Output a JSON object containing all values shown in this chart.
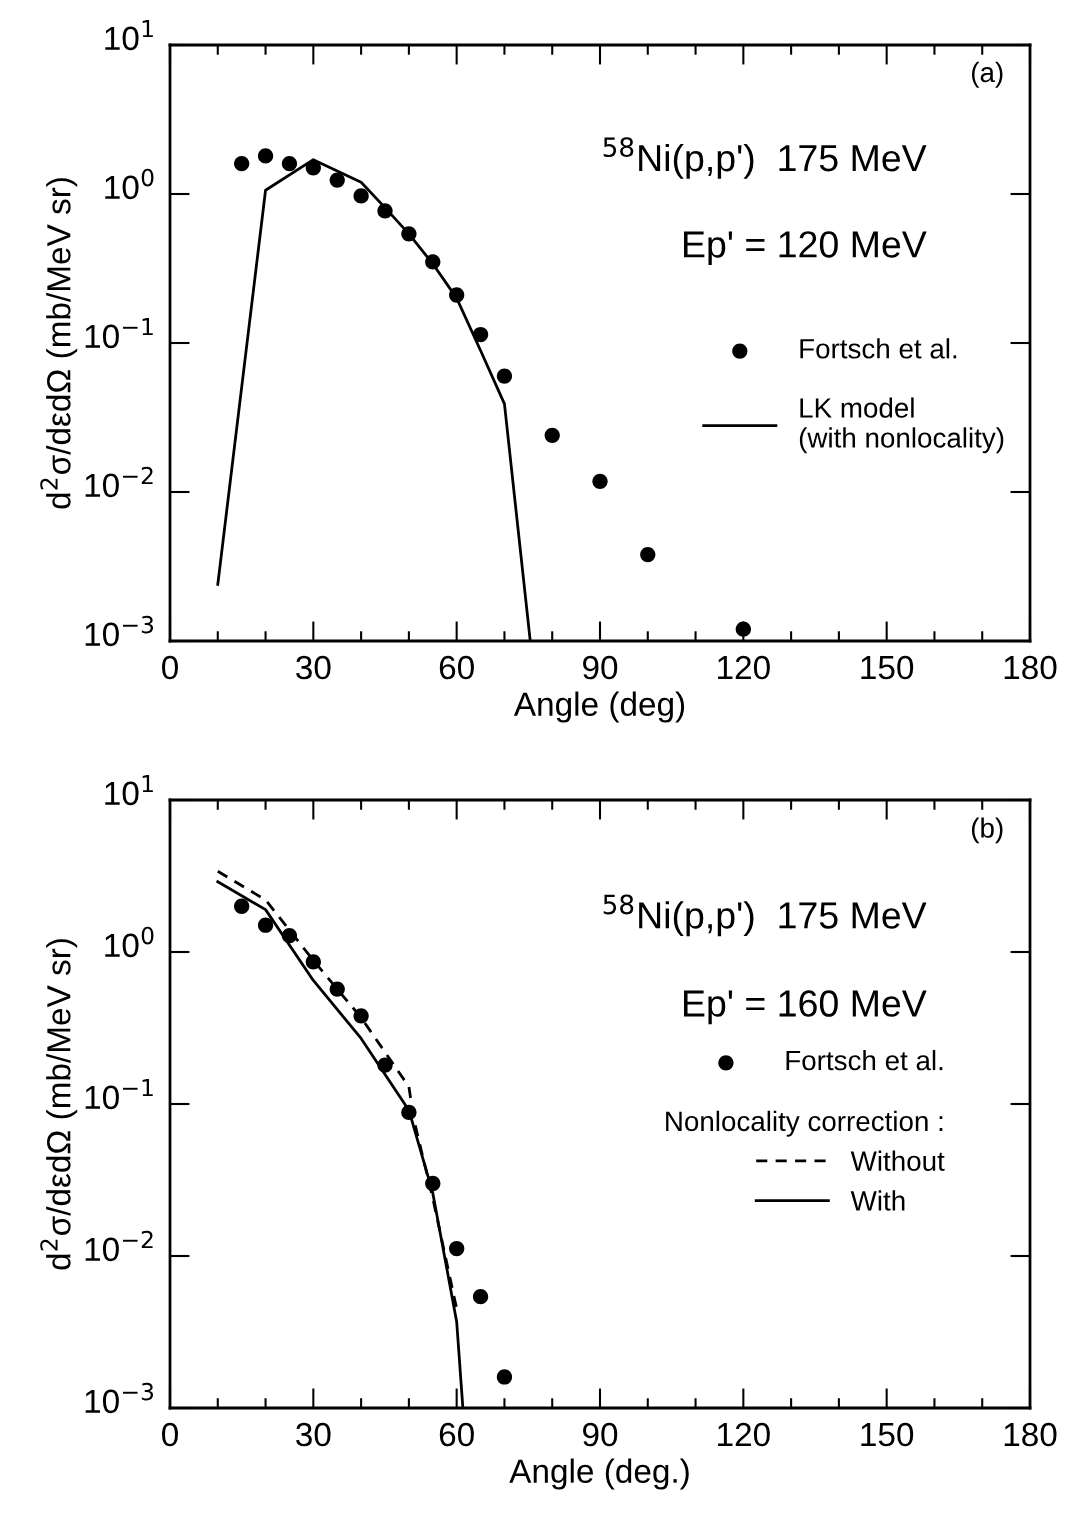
{
  "chart_data": [
    {
      "type": "scatter",
      "xlabel": "Angle (deg)",
      "ylabel": "d$^{2}$σ/dεdΩ (mb/MeV sr)",
      "log": "y",
      "xlim": [
        0,
        180
      ],
      "xticks": [
        0,
        30,
        60,
        90,
        120,
        150,
        180
      ],
      "ylim": [
        0.001,
        10
      ],
      "yticks": [
        {
          "value": 0.001,
          "label": "10$^{−3}$"
        },
        {
          "value": 0.01,
          "label": "10$^{−2}$"
        },
        {
          "value": 0.1,
          "label": "10$^{−1}$"
        },
        {
          "value": 1,
          "label": "10$^{0}$"
        },
        {
          "value": 10,
          "label": "10$^{1}$"
        }
      ],
      "grid": false,
      "legend": "right",
      "annotations": [
        "(a)",
        "$^{58}$Ni(p,p')  175 MeV",
        "Ep' = 120 MeV"
      ],
      "series": [
        {
          "name": "Fortsch et al.",
          "marker": "circle",
          "color": "#000000",
          "x": [
            15,
            20,
            25,
            30,
            35,
            40,
            45,
            50,
            55,
            60,
            65,
            70,
            80,
            90,
            100,
            120
          ],
          "values": [
            1.6,
            1.8,
            1.6,
            1.5,
            1.24,
            0.97,
            0.77,
            0.54,
            0.35,
            0.21,
            0.114,
            0.06,
            0.024,
            0.0118,
            0.0038,
            0.0012
          ]
        },
        {
          "name": "LK model\n(with nonlocality)",
          "type": "line",
          "line_style": "solid",
          "color": "#000000",
          "x": [
            10,
            20,
            30,
            40,
            45,
            50,
            55,
            60,
            65,
            70,
            75.4
          ],
          "values": [
            0.0024,
            1.06,
            1.7,
            1.2,
            0.81,
            0.54,
            0.34,
            0.2,
            0.089,
            0.039,
            0.001
          ]
        }
      ]
    },
    {
      "type": "scatter",
      "xlabel": "Angle (deg.)",
      "ylabel": "d$^{2}$σ/dεdΩ (mb/MeV sr)",
      "log": "y",
      "xlim": [
        0,
        180
      ],
      "xticks": [
        0,
        30,
        60,
        90,
        120,
        150,
        180
      ],
      "ylim": [
        0.001,
        10
      ],
      "yticks": [
        {
          "value": 0.001,
          "label": "10$^{−3}$"
        },
        {
          "value": 0.01,
          "label": "10$^{−2}$"
        },
        {
          "value": 0.1,
          "label": "10$^{−1}$"
        },
        {
          "value": 1,
          "label": "10$^{0}$"
        },
        {
          "value": 10,
          "label": "10$^{1}$"
        }
      ],
      "grid": false,
      "legend": "right",
      "legend_title": "Nonlocality correction :",
      "annotations": [
        "(b)",
        "$^{58}$Ni(p,p')  175 MeV",
        "Ep' = 160 MeV"
      ],
      "series": [
        {
          "name": "Fortsch et al.",
          "marker": "circle",
          "color": "#000000",
          "x": [
            15,
            20,
            25,
            30,
            35,
            40,
            45,
            50,
            55,
            60,
            65,
            70
          ],
          "values": [
            2.0,
            1.5,
            1.28,
            0.86,
            0.57,
            0.38,
            0.18,
            0.088,
            0.03,
            0.0112,
            0.0054,
            0.0016
          ]
        },
        {
          "name": "Without",
          "type": "line",
          "line_style": "dashed",
          "color": "#000000",
          "x": [
            10,
            20,
            30,
            40,
            50,
            51,
            55,
            60
          ],
          "values": [
            3.4,
            2.2,
            0.88,
            0.37,
            0.13,
            0.08,
            0.024,
            0.0045
          ]
        },
        {
          "name": "With",
          "type": "line",
          "line_style": "solid",
          "color": "#000000",
          "x": [
            10,
            20,
            30,
            40,
            50,
            55,
            60,
            61.3
          ],
          "values": [
            2.9,
            1.9,
            0.65,
            0.27,
            0.091,
            0.026,
            0.0037,
            0.001
          ]
        }
      ]
    }
  ]
}
